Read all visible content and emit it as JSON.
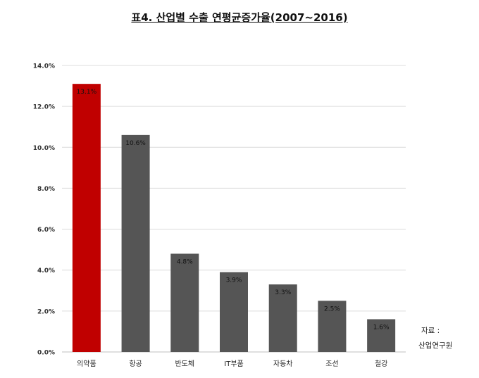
{
  "chart_data": {
    "type": "bar",
    "title": "표4. 산업별 수출 연평균증가율(2007~2016)",
    "categories": [
      "의약품",
      "항공",
      "반도체",
      "IT부품",
      "자동차",
      "조선",
      "철강"
    ],
    "values": [
      13.1,
      10.6,
      4.8,
      3.9,
      3.3,
      2.5,
      1.6
    ],
    "data_labels": [
      "13.1%",
      "10.6%",
      "4.8%",
      "3.9%",
      "3.3%",
      "2.5%",
      "1.6%"
    ],
    "y_ticks": [
      "0.0%",
      "2.0%",
      "4.0%",
      "6.0%",
      "8.0%",
      "10.0%",
      "12.0%",
      "14.0%"
    ],
    "ylim": [
      0,
      14
    ],
    "grid": true,
    "highlight_color": "#c00000",
    "bar_color": "#555555"
  },
  "source": {
    "label": "자료 :",
    "org": "산업연구원"
  }
}
